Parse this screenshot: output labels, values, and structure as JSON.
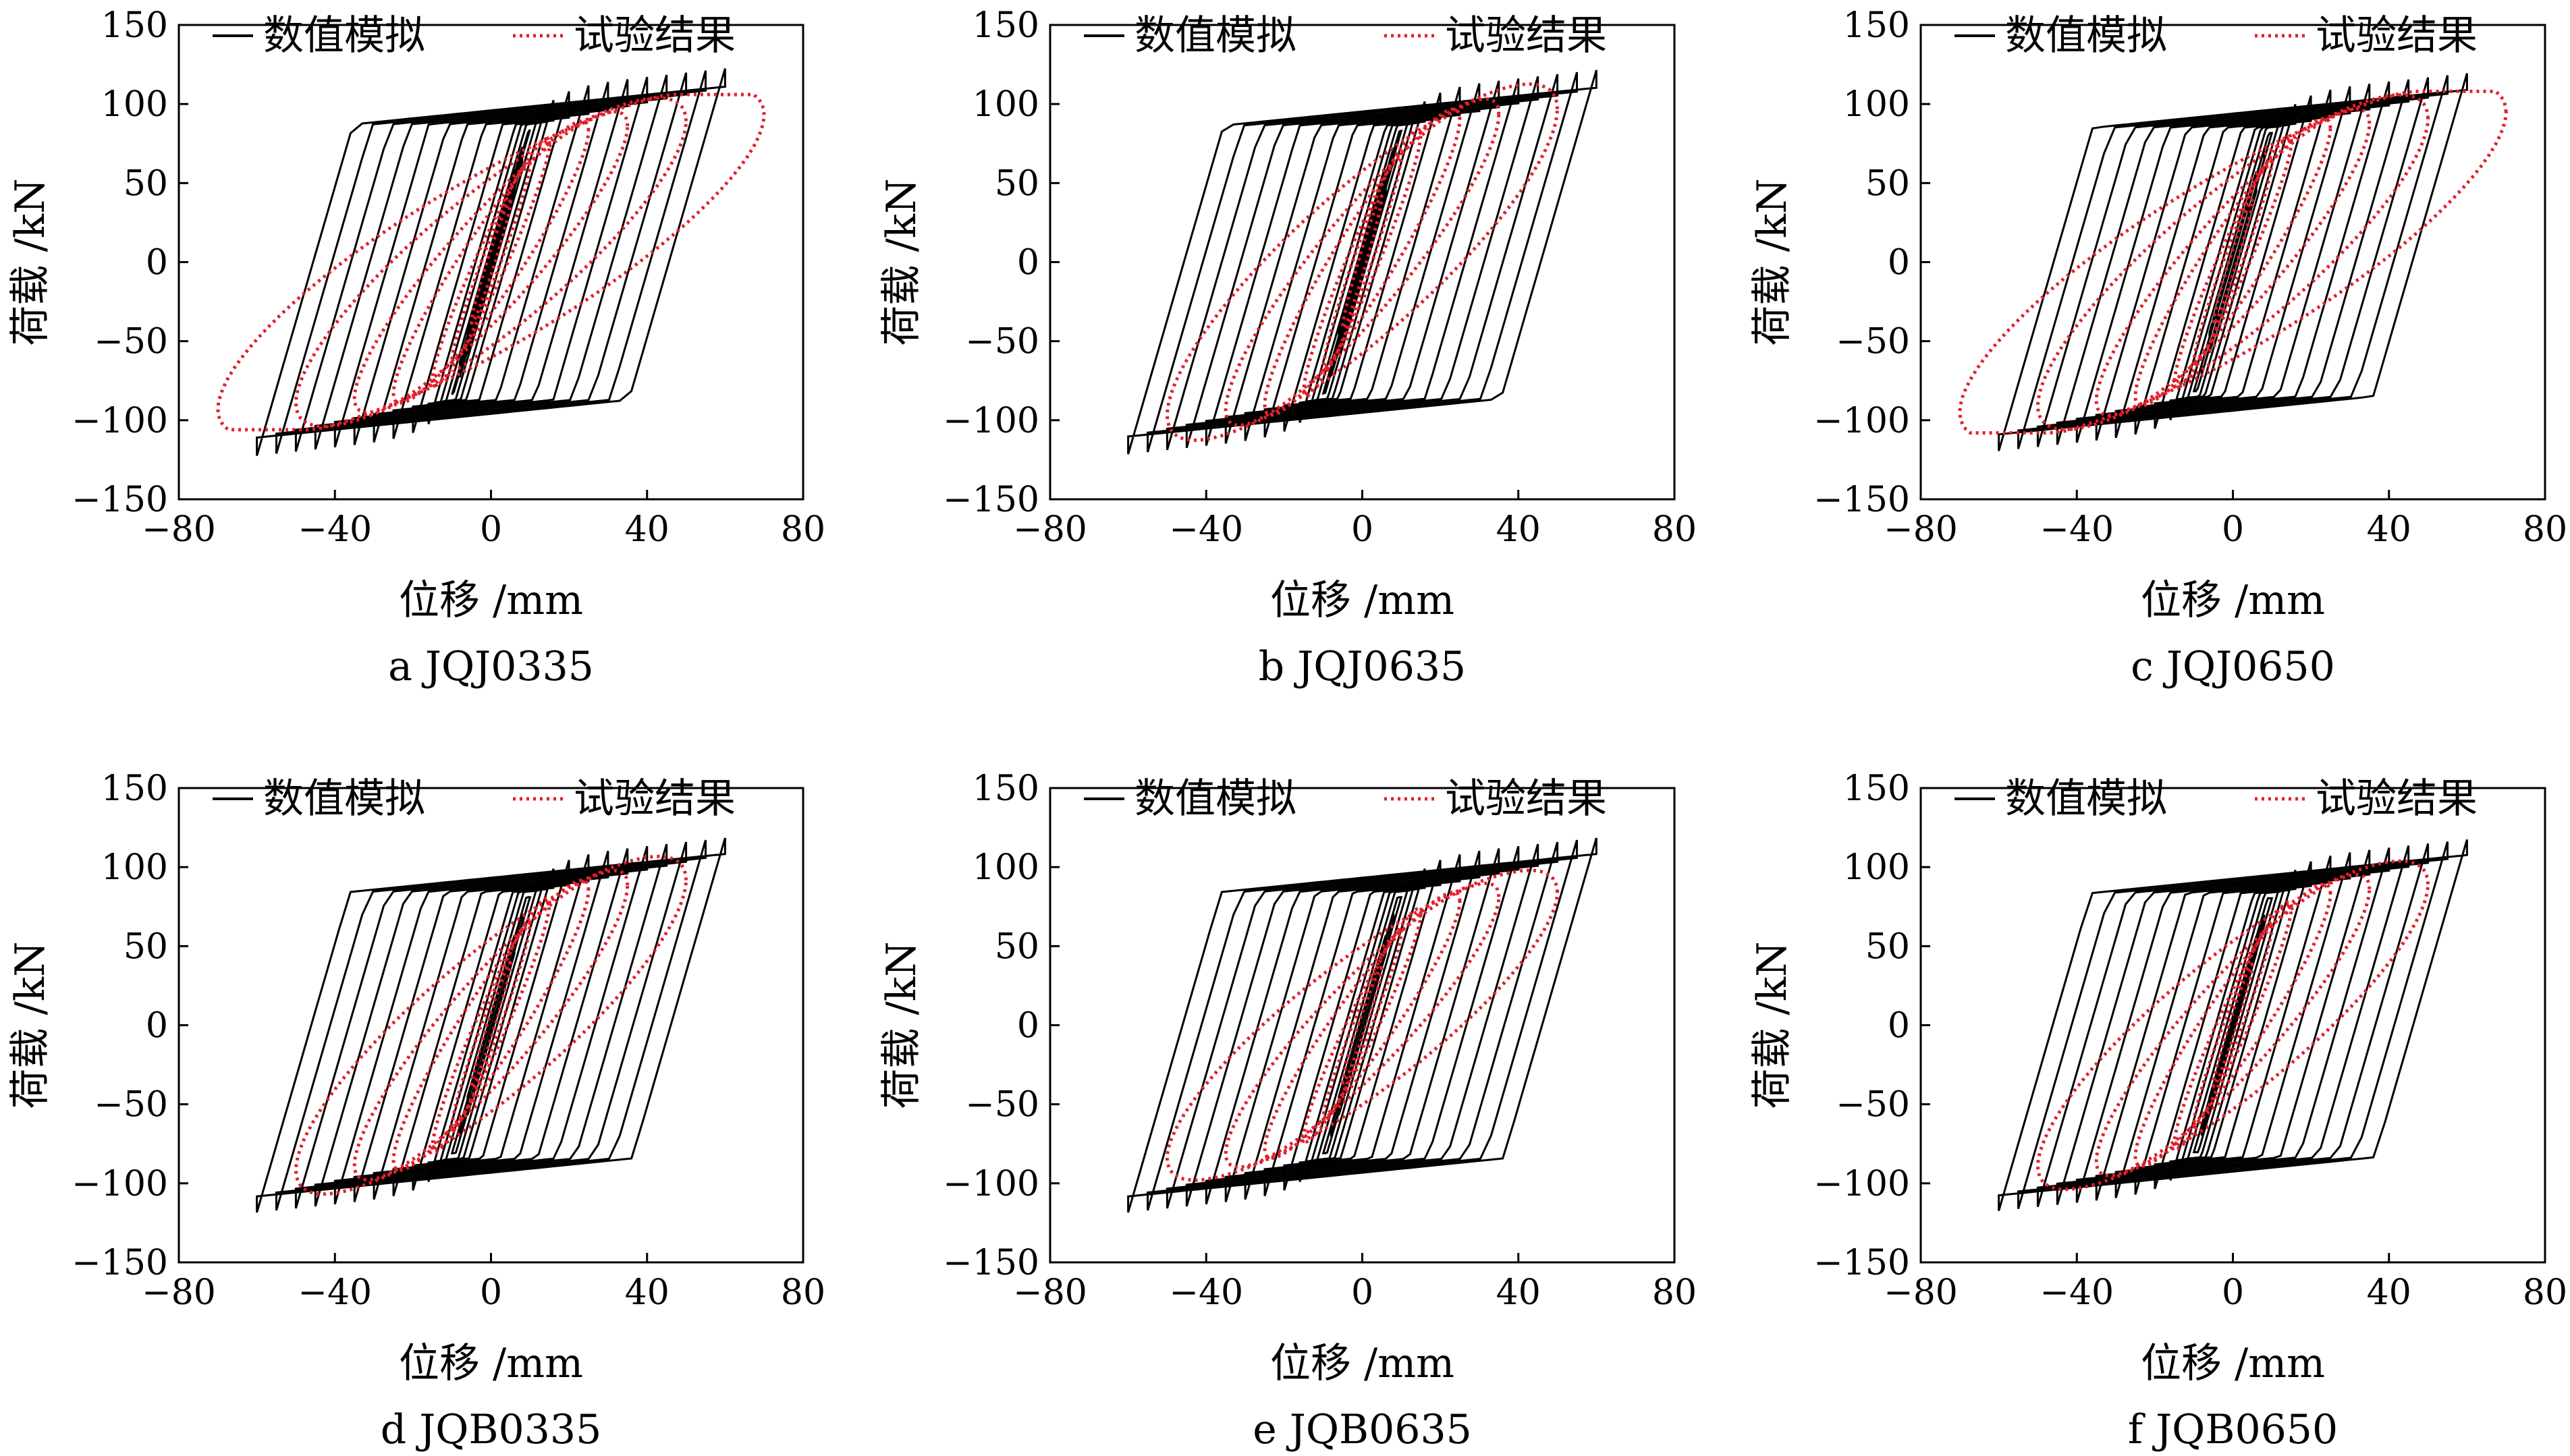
{
  "figure": {
    "xlabel": "位移 /mm",
    "ylabel": "荷载 /kN",
    "xlim": [
      -80,
      80
    ],
    "ylim": [
      -150,
      150
    ],
    "xticks": [
      -80,
      -40,
      0,
      40,
      80
    ],
    "yticks": [
      -150,
      -100,
      -50,
      0,
      50,
      100,
      150
    ],
    "legend": {
      "placement": "top",
      "entries": [
        "数值模拟",
        "试验结果"
      ]
    },
    "colors": {
      "simulation": "#000000",
      "experiment": "#e2202b"
    }
  },
  "chart_data": [
    {
      "type": "line",
      "caption": "a JQJ0335",
      "xlabel": "位移 /mm",
      "ylabel": "荷载 /kN",
      "xlim": [
        -80,
        80
      ],
      "ylim": [
        -150,
        150
      ],
      "grid": false,
      "legend": "top",
      "series": [
        {
          "name": "数值模拟",
          "style": "solid",
          "color": "#000000",
          "amplitudes": [
            4,
            6,
            8,
            10,
            12,
            14,
            16,
            20,
            25,
            30,
            35,
            40,
            45,
            50,
            55,
            60
          ],
          "peak_load_pos": 121,
          "peak_load_neg": -121,
          "min_x": -66,
          "max_x": 62
        },
        {
          "name": "试验结果",
          "style": "dotted",
          "color": "#e2202b",
          "amplitudes": [
            5,
            10,
            15,
            25,
            35,
            50,
            70
          ],
          "peak_load_pos": 106,
          "peak_load_neg": -117,
          "min_x": -72,
          "max_x": 71
        }
      ]
    },
    {
      "type": "line",
      "caption": "b JQJ0635",
      "xlabel": "位移 /mm",
      "ylabel": "荷载 /kN",
      "xlim": [
        -80,
        80
      ],
      "ylim": [
        -150,
        150
      ],
      "grid": false,
      "legend": "top",
      "series": [
        {
          "name": "数值模拟",
          "style": "solid",
          "color": "#000000",
          "amplitudes": [
            4,
            6,
            8,
            10,
            12,
            14,
            16,
            20,
            25,
            30,
            35,
            40,
            45,
            50,
            55,
            60
          ],
          "peak_load_pos": 120,
          "peak_load_neg": -121,
          "min_x": -62,
          "max_x": 63
        },
        {
          "name": "试验结果",
          "style": "dotted",
          "color": "#e2202b",
          "amplitudes": [
            5,
            10,
            15,
            25,
            35,
            50
          ],
          "peak_load_pos": 115,
          "peak_load_neg": -127,
          "min_x": -50,
          "max_x": 68
        }
      ]
    },
    {
      "type": "line",
      "caption": "c JQJ0650",
      "xlabel": "位移 /mm",
      "ylabel": "荷载 /kN",
      "xlim": [
        -80,
        80
      ],
      "ylim": [
        -150,
        150
      ],
      "grid": false,
      "legend": "top",
      "series": [
        {
          "name": "数值模拟",
          "style": "solid",
          "color": "#000000",
          "amplitudes": [
            4,
            6,
            8,
            10,
            12,
            14,
            16,
            20,
            25,
            30,
            35,
            40,
            45,
            50,
            55,
            60
          ],
          "peak_load_pos": 118,
          "peak_load_neg": -122,
          "min_x": -62,
          "max_x": 65
        },
        {
          "name": "试验结果",
          "style": "dotted",
          "color": "#e2202b",
          "amplitudes": [
            5,
            10,
            15,
            25,
            35,
            50,
            70
          ],
          "peak_load_pos": 108,
          "peak_load_neg": -122,
          "min_x": -52,
          "max_x": 71
        }
      ]
    },
    {
      "type": "line",
      "caption": "d JQB0335",
      "xlabel": "位移 /mm",
      "ylabel": "荷载 /kN",
      "xlim": [
        -80,
        80
      ],
      "ylim": [
        -150,
        150
      ],
      "grid": false,
      "legend": "top",
      "series": [
        {
          "name": "数值模拟",
          "style": "solid",
          "color": "#000000",
          "amplitudes": [
            4,
            6,
            8,
            10,
            12,
            14,
            16,
            20,
            25,
            30,
            35,
            40,
            45,
            50,
            55,
            60
          ],
          "peak_load_pos": 117,
          "peak_load_neg": -121,
          "min_x": -63,
          "max_x": 64
        },
        {
          "name": "试验结果",
          "style": "dotted",
          "color": "#e2202b",
          "amplitudes": [
            5,
            10,
            15,
            25,
            35,
            50
          ],
          "peak_load_pos": 109,
          "peak_load_neg": -110,
          "min_x": -55,
          "max_x": 48
        }
      ]
    },
    {
      "type": "line",
      "caption": "e JQB0635",
      "xlabel": "位移 /mm",
      "ylabel": "荷载 /kN",
      "xlim": [
        -80,
        80
      ],
      "ylim": [
        -150,
        150
      ],
      "grid": false,
      "legend": "top",
      "series": [
        {
          "name": "数值模拟",
          "style": "solid",
          "color": "#000000",
          "amplitudes": [
            4,
            6,
            8,
            10,
            12,
            14,
            16,
            20,
            25,
            30,
            35,
            40,
            45,
            50,
            55,
            60
          ],
          "peak_load_pos": 117,
          "peak_load_neg": -122,
          "min_x": -63,
          "max_x": 64
        },
        {
          "name": "试验结果",
          "style": "dotted",
          "color": "#e2202b",
          "amplitudes": [
            5,
            10,
            15,
            25,
            35,
            50
          ],
          "peak_load_pos": 100,
          "peak_load_neg": -120,
          "min_x": -50,
          "max_x": 55
        }
      ]
    },
    {
      "type": "line",
      "caption": "f JQB0650",
      "xlabel": "位移 /mm",
      "ylabel": "荷载 /kN",
      "xlim": [
        -80,
        80
      ],
      "ylim": [
        -150,
        150
      ],
      "grid": false,
      "legend": "top",
      "series": [
        {
          "name": "数值模拟",
          "style": "solid",
          "color": "#000000",
          "amplitudes": [
            4,
            6,
            8,
            10,
            12,
            14,
            16,
            20,
            25,
            30,
            35,
            40,
            45,
            50,
            55,
            60
          ],
          "peak_load_pos": 116,
          "peak_load_neg": -121,
          "min_x": -62,
          "max_x": 63
        },
        {
          "name": "试验结果",
          "style": "dotted",
          "color": "#e2202b",
          "amplitudes": [
            5,
            10,
            15,
            25,
            35,
            50
          ],
          "peak_load_pos": 106,
          "peak_load_neg": -112,
          "min_x": -52,
          "max_x": 47
        }
      ]
    }
  ]
}
